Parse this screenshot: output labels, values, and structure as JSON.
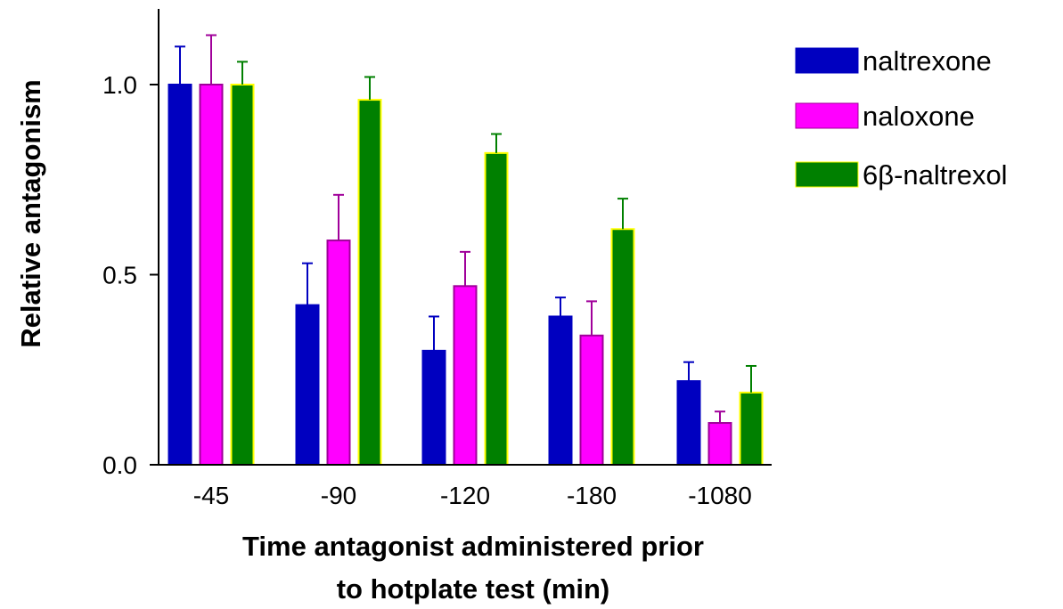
{
  "chart_data": {
    "type": "bar",
    "title": "",
    "xlabel_lines": [
      "Time antagonist administered prior",
      "to hotplate test (min)"
    ],
    "ylabel": "Relative antagonism",
    "categories": [
      "-45",
      "-90",
      "-120",
      "-180",
      "-1080"
    ],
    "ylim": [
      0,
      1.2
    ],
    "yticks": [
      0.0,
      0.5,
      1.0
    ],
    "ytick_labels": [
      "0.0",
      "0.5",
      "1.0"
    ],
    "grid": false,
    "legend_position": "top-right",
    "series": [
      {
        "name": "naltrexone",
        "fill": "#0000c0",
        "stroke": "#0000c0",
        "error_color": "#0000c0",
        "values": [
          1.0,
          0.42,
          0.3,
          0.39,
          0.22
        ],
        "errors": [
          0.1,
          0.11,
          0.09,
          0.05,
          0.05
        ]
      },
      {
        "name": "naloxone",
        "fill": "#ff00ff",
        "stroke": "#a0009a",
        "error_color": "#a0009a",
        "values": [
          1.0,
          0.59,
          0.47,
          0.34,
          0.11
        ],
        "errors": [
          0.13,
          0.12,
          0.09,
          0.09,
          0.03
        ]
      },
      {
        "name": "6β-naltrexol",
        "fill": "#008000",
        "stroke": "#ffff00",
        "error_color": "#008000",
        "values": [
          1.0,
          0.96,
          0.82,
          0.62,
          0.19
        ],
        "errors": [
          0.06,
          0.06,
          0.05,
          0.08,
          0.07
        ]
      }
    ]
  }
}
